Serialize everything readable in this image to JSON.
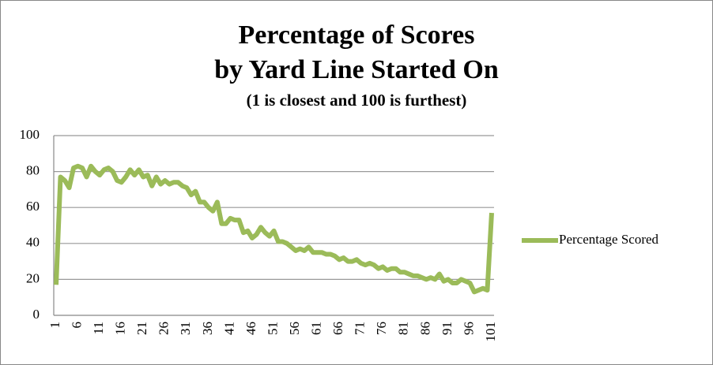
{
  "chart_data": {
    "type": "line",
    "title": [
      "Percentage of Scores",
      "by Yard Line Started On"
    ],
    "subtitle": "(1 is closest and 100 is furthest)",
    "categories": [
      "1",
      null,
      null,
      null,
      null,
      "6",
      null,
      null,
      null,
      null,
      "11",
      null,
      null,
      null,
      null,
      "16",
      null,
      null,
      null,
      null,
      "21",
      null,
      null,
      null,
      null,
      "26",
      null,
      null,
      null,
      null,
      "31",
      null,
      null,
      null,
      null,
      "36",
      null,
      null,
      null,
      null,
      "41",
      null,
      null,
      null,
      null,
      "46",
      null,
      null,
      null,
      null,
      "51",
      null,
      null,
      null,
      null,
      "56",
      null,
      null,
      null,
      null,
      "61",
      null,
      null,
      null,
      null,
      "66",
      null,
      null,
      null,
      null,
      "71",
      null,
      null,
      null,
      null,
      "76",
      null,
      null,
      null,
      null,
      "81",
      null,
      null,
      null,
      null,
      "86",
      null,
      null,
      null,
      null,
      "91",
      null,
      null,
      null,
      null,
      "96",
      null,
      null,
      null,
      null,
      "101"
    ],
    "series": [
      {
        "name": "Percentage Scored",
        "color": "#9bbb59",
        "values": [
          17,
          77,
          75,
          71,
          82,
          83,
          82,
          77,
          83,
          80,
          78,
          81,
          82,
          80,
          75,
          74,
          77,
          81,
          78,
          81,
          77,
          78,
          72,
          77,
          73,
          75,
          73,
          74,
          74,
          72,
          71,
          67,
          69,
          63,
          63,
          60,
          58,
          63,
          51,
          51,
          54,
          53,
          53,
          46,
          47,
          43,
          45,
          49,
          46,
          44,
          47,
          41,
          41,
          40,
          38,
          36,
          37,
          36,
          38,
          35,
          35,
          35,
          34,
          34,
          33,
          31,
          32,
          30,
          30,
          31,
          29,
          28,
          29,
          28,
          26,
          27,
          25,
          26,
          26,
          24,
          24,
          23,
          22,
          22,
          21,
          20,
          21,
          20,
          23,
          19,
          20,
          18,
          18,
          20,
          19,
          18,
          13,
          14,
          15,
          14,
          57
        ]
      }
    ],
    "ylim": [
      0,
      100
    ],
    "yticks": [
      0,
      20,
      40,
      60,
      80,
      100
    ],
    "grid": true,
    "legend": "right"
  }
}
